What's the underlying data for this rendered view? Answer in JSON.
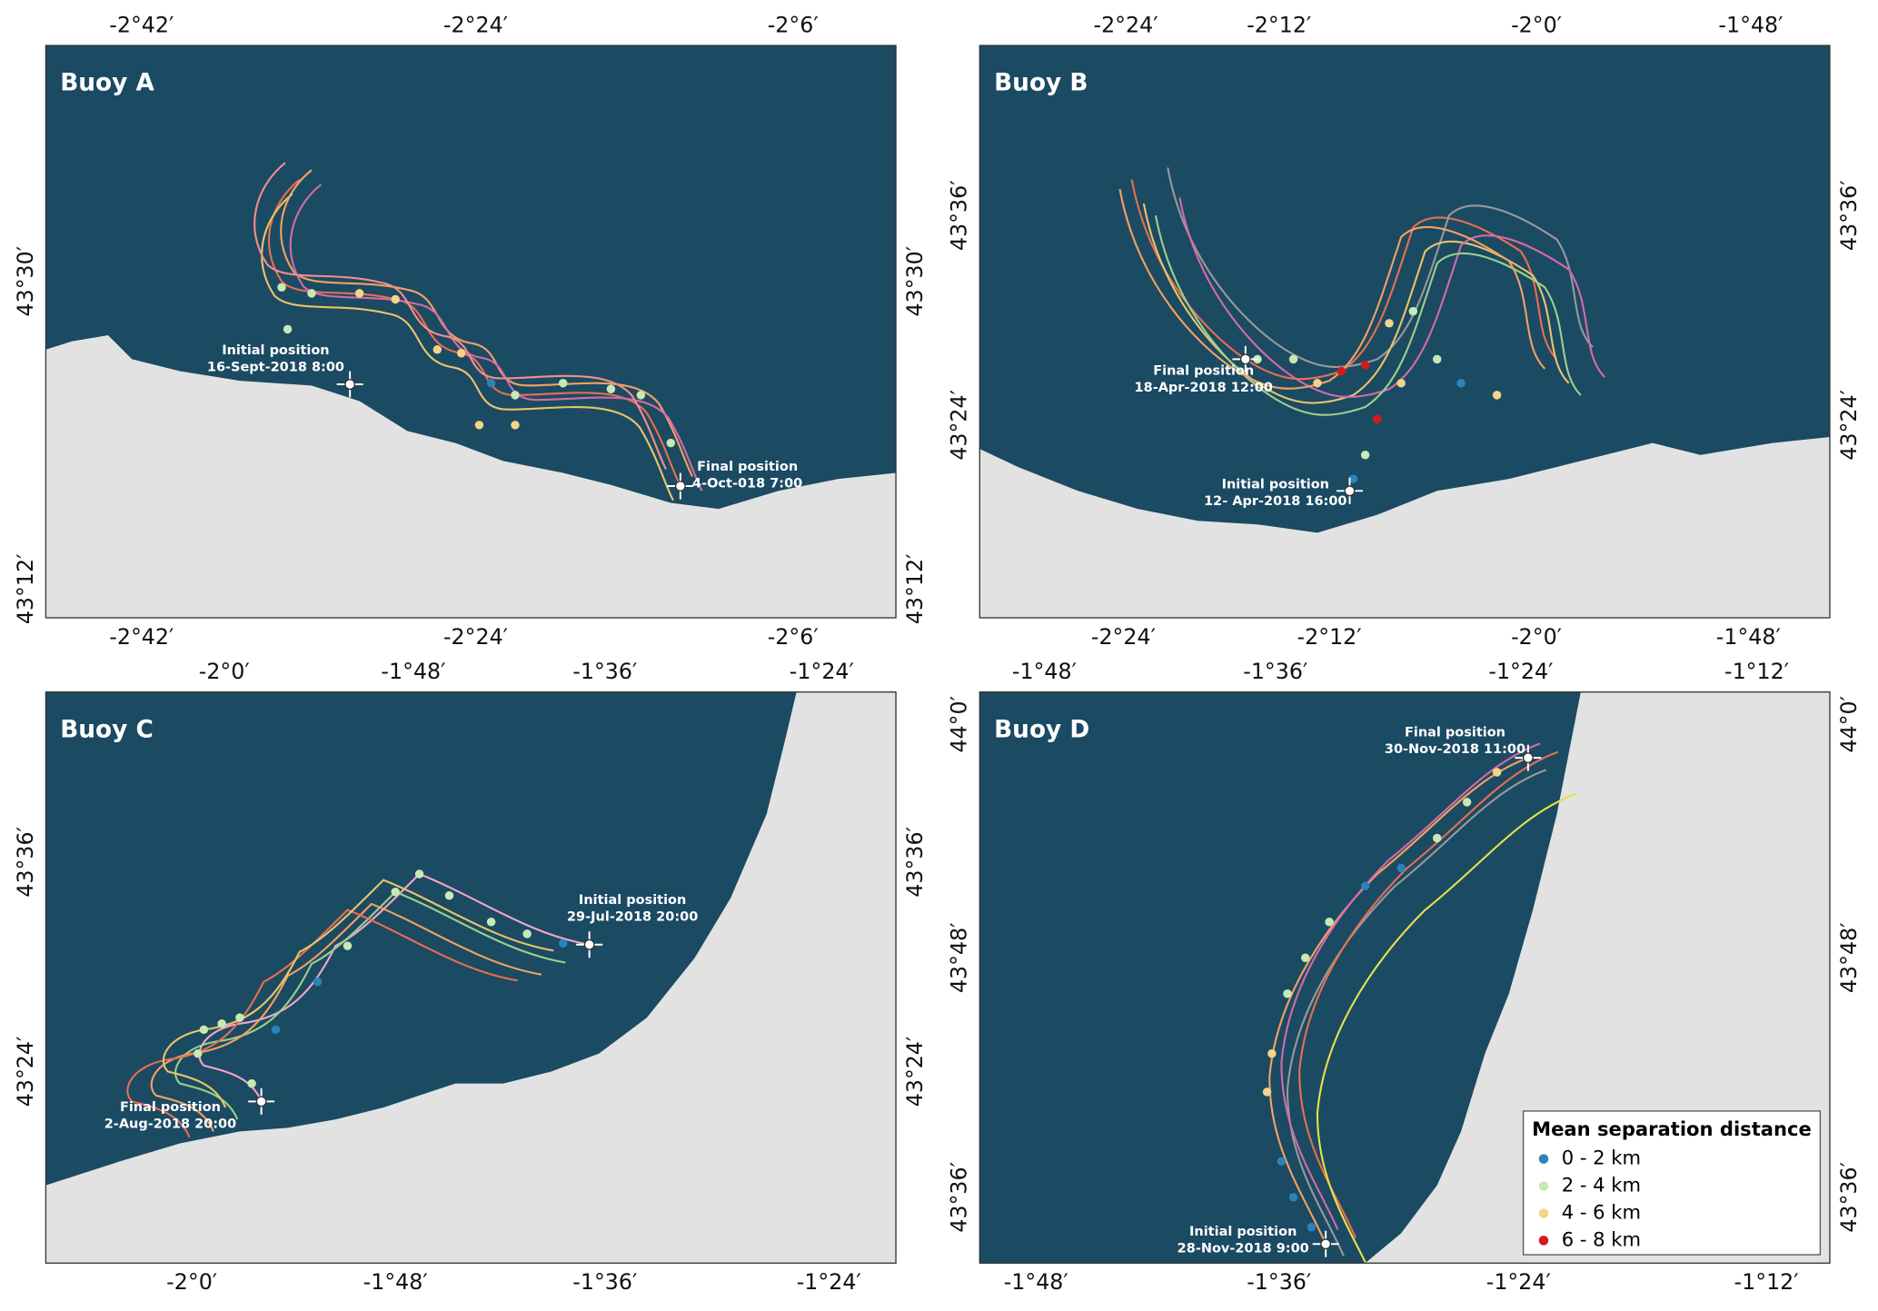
{
  "panels": [
    {
      "title": "Buoy A",
      "top_ticks": [
        "-2°42′",
        "-2°24′",
        "-2°6′"
      ],
      "bottom_ticks": [
        "-2°42′",
        "-2°24′",
        "-2°6′"
      ],
      "left_ticks": [
        "43°30′",
        "43°12′"
      ],
      "right_ticks": [
        "43°30′",
        "43°12′"
      ],
      "annotations": [
        {
          "lines": [
            "Initial position",
            "16-Sept-2018 8:00"
          ]
        },
        {
          "lines": [
            "Final position",
            "4-Oct-018 7:00"
          ]
        }
      ]
    },
    {
      "title": "Buoy B",
      "top_ticks": [
        "-2°24′",
        "-2°12′",
        "-2°0′",
        "-1°48′"
      ],
      "bottom_ticks": [
        "-2°24′",
        "-2°12′",
        "-2°0′",
        "-1°48′"
      ],
      "left_ticks": [
        "43°36′",
        "43°24′"
      ],
      "right_ticks": [
        "43°36′",
        "43°24′"
      ],
      "annotations": [
        {
          "lines": [
            "Final position",
            "18-Apr-2018 12:00"
          ]
        },
        {
          "lines": [
            "Initial position",
            "12- Apr-2018 16:00"
          ]
        }
      ]
    },
    {
      "title": "Buoy C",
      "top_ticks": [
        "-2°0′",
        "-1°48′",
        "-1°36′",
        "-1°24′"
      ],
      "bottom_ticks": [
        "-2°0′",
        "-1°48′",
        "-1°36′",
        "-1°24′"
      ],
      "left_ticks": [
        "43°36′",
        "43°24′"
      ],
      "right_ticks": [
        "43°36′",
        "43°24′"
      ],
      "annotations": [
        {
          "lines": [
            "Initial position",
            "29-Jul-2018 20:00"
          ]
        },
        {
          "lines": [
            "Final position",
            "2-Aug-2018 20:00"
          ]
        }
      ]
    },
    {
      "title": "Buoy D",
      "top_ticks": [
        "-1°48′",
        "-1°36′",
        "-1°24′",
        "-1°12′"
      ],
      "bottom_ticks": [
        "-1°48′",
        "-1°36′",
        "-1°24′",
        "-1°12′"
      ],
      "left_ticks": [
        "44°0′",
        "43°48′",
        "43°36′"
      ],
      "right_ticks": [
        "44°0′",
        "43°48′",
        "43°36′"
      ],
      "annotations": [
        {
          "lines": [
            "Final position",
            "30-Nov-2018 11:00"
          ]
        },
        {
          "lines": [
            "Initial position",
            "28-Nov-2018 9:00"
          ]
        }
      ]
    }
  ],
  "legend": {
    "title": "Mean separation distance",
    "entries": [
      {
        "label": "0 - 2 km",
        "color": "#2b83ba"
      },
      {
        "label": "2 - 4 km",
        "color": "#c7e9b4"
      },
      {
        "label": "4 - 6 km",
        "color": "#f6d28a"
      },
      {
        "label": "6 - 8 km",
        "color": "#d7191c"
      }
    ]
  }
}
